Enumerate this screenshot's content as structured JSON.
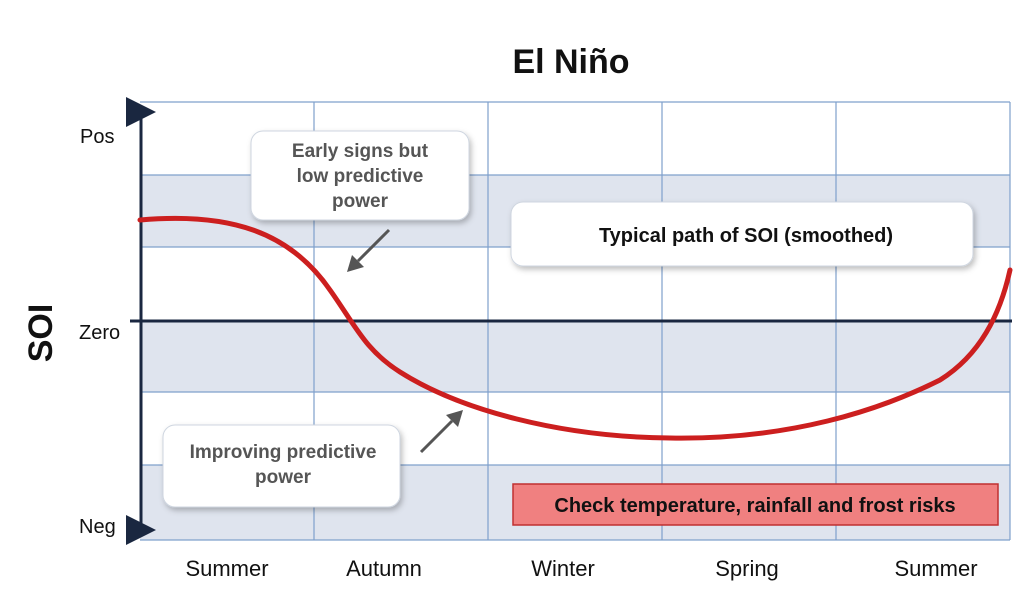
{
  "title": "El Niño",
  "y_axis": {
    "label": "SOI",
    "ticks": [
      "Pos",
      "Zero",
      "Neg"
    ]
  },
  "x_axis": {
    "ticks": [
      "Summer",
      "Autumn",
      "Winter",
      "Spring",
      "Summer"
    ]
  },
  "callouts": {
    "early_signs": [
      "Early signs but",
      "low predictive",
      "power"
    ],
    "typical_path": "Typical path of SOI  (smoothed)",
    "improving": [
      "Improving predictive",
      "power"
    ],
    "alert": "Check temperature, rainfall and frost risks"
  },
  "colors": {
    "curve": "#cc1f1f",
    "band": "#dfe4ee",
    "grid": "#7fa0cc",
    "axis": "#1a2740",
    "alert_fill": "#f08080",
    "alert_border": "#c03030"
  }
}
